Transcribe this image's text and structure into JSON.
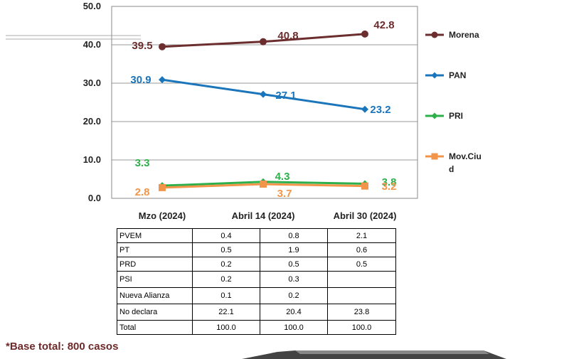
{
  "chart_data": {
    "type": "line",
    "categories": [
      "Mzo (2024)",
      "Abril 14 (2024)",
      "Abril 30 (2024)"
    ],
    "ylim": [
      0,
      50
    ],
    "yticks": [
      "0.0",
      "10.0",
      "20.0",
      "30.0",
      "40.0",
      "50.0"
    ],
    "grid": true,
    "legend_position": "right",
    "series": [
      {
        "name": "Morena",
        "values": [
          39.5,
          40.8,
          42.8
        ],
        "labels": [
          "39.5",
          "40.8",
          "42.8"
        ],
        "color": "#6B2D2D",
        "marker": "circle"
      },
      {
        "name": "PAN",
        "values": [
          30.9,
          27.1,
          23.2
        ],
        "labels": [
          "30.9",
          "27.1",
          "23.2"
        ],
        "color": "#1B75BB",
        "marker": "diamond"
      },
      {
        "name": "PRI",
        "values": [
          3.3,
          4.3,
          3.8
        ],
        "labels": [
          "3.3",
          "4.3",
          "3.8"
        ],
        "color": "#2DB04B",
        "marker": "diamond"
      },
      {
        "name": "Mov.Ciud",
        "values": [
          2.8,
          3.7,
          3.2
        ],
        "labels": [
          "2.8",
          "3.7",
          "3.2"
        ],
        "color": "#F0954A",
        "marker": "square"
      }
    ]
  },
  "table": {
    "rows": [
      {
        "label": "PVEM",
        "values": [
          "0.4",
          "0.8",
          "2.1"
        ]
      },
      {
        "label": "PT",
        "values": [
          "0.5",
          "1.9",
          "0.6"
        ]
      },
      {
        "label": "PRD",
        "values": [
          "0.2",
          "0.5",
          "0.5"
        ]
      },
      {
        "label": "PSI",
        "values": [
          "0.2",
          "0.3",
          ""
        ]
      },
      {
        "label": "Nueva Alianza",
        "values": [
          "0.1",
          "0.2",
          ""
        ]
      },
      {
        "label": "No declara",
        "values": [
          "22.1",
          "20.4",
          "23.8"
        ]
      },
      {
        "label": "Total",
        "values": [
          "100.0",
          "100.0",
          "100.0"
        ]
      }
    ]
  },
  "footnote": "*Base total: 800 casos"
}
